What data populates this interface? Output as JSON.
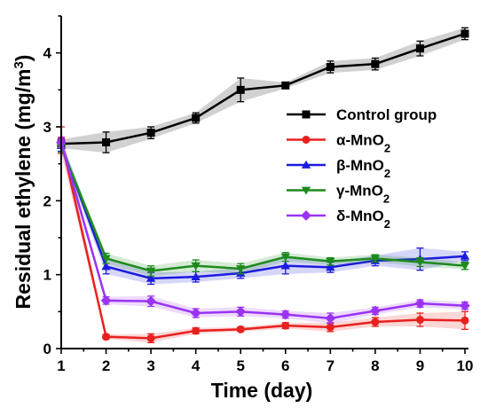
{
  "chart_data": {
    "type": "line",
    "xlabel": "Time (day)",
    "ylabel_main": "Residual ethylene (mg/m",
    "ylabel_sup": "3",
    "ylabel_close": ")",
    "x": [
      1,
      2,
      3,
      4,
      5,
      6,
      7,
      8,
      9,
      10
    ],
    "x_ticks": [
      "1",
      "2",
      "3",
      "4",
      "5",
      "6",
      "7",
      "8",
      "9",
      "10"
    ],
    "y_ticks": [
      "0",
      "1",
      "2",
      "3",
      "4"
    ],
    "xlim": [
      1,
      10
    ],
    "ylim": [
      0,
      4.5
    ],
    "grid": false,
    "legend_position": "right",
    "series": [
      {
        "name": "Control group",
        "name_sub": "",
        "color": "#000000",
        "marker": "square",
        "values": [
          2.77,
          2.79,
          2.92,
          3.12,
          3.5,
          3.56,
          3.81,
          3.85,
          4.06,
          4.26
        ],
        "errors": [
          0.06,
          0.14,
          0.08,
          0.07,
          0.16,
          0.04,
          0.08,
          0.08,
          0.1,
          0.08
        ]
      },
      {
        "name": "α-MnO",
        "name_sub": "2",
        "color": "#e8201e",
        "marker": "circle",
        "values": [
          2.82,
          0.16,
          0.14,
          0.24,
          0.26,
          0.31,
          0.29,
          0.36,
          0.39,
          0.38
        ],
        "errors": [
          0.18,
          0.03,
          0.06,
          0.04,
          0.03,
          0.04,
          0.06,
          0.06,
          0.09,
          0.12
        ]
      },
      {
        "name": "β-MnO",
        "name_sub": "2",
        "color": "#1b1be0",
        "marker": "triangle-up",
        "values": [
          2.75,
          1.11,
          0.95,
          0.97,
          1.02,
          1.12,
          1.1,
          1.19,
          1.21,
          1.25
        ],
        "errors": [
          0.08,
          0.1,
          0.08,
          0.07,
          0.07,
          0.11,
          0.07,
          0.07,
          0.15,
          0.06
        ]
      },
      {
        "name": "γ-MnO",
        "name_sub": "2",
        "color": "#1e8a1e",
        "marker": "triangle-down",
        "values": [
          2.73,
          1.22,
          1.05,
          1.12,
          1.08,
          1.24,
          1.18,
          1.22,
          1.17,
          1.12
        ],
        "errors": [
          0.07,
          0.07,
          0.07,
          0.08,
          0.07,
          0.06,
          0.05,
          0.05,
          0.06,
          0.05
        ]
      },
      {
        "name": "δ-MnO",
        "name_sub": "2",
        "color": "#9a33f2",
        "marker": "diamond",
        "values": [
          2.79,
          0.65,
          0.64,
          0.48,
          0.5,
          0.46,
          0.41,
          0.51,
          0.61,
          0.58
        ],
        "errors": [
          0.07,
          0.05,
          0.07,
          0.06,
          0.06,
          0.05,
          0.07,
          0.05,
          0.05,
          0.05
        ]
      }
    ]
  }
}
